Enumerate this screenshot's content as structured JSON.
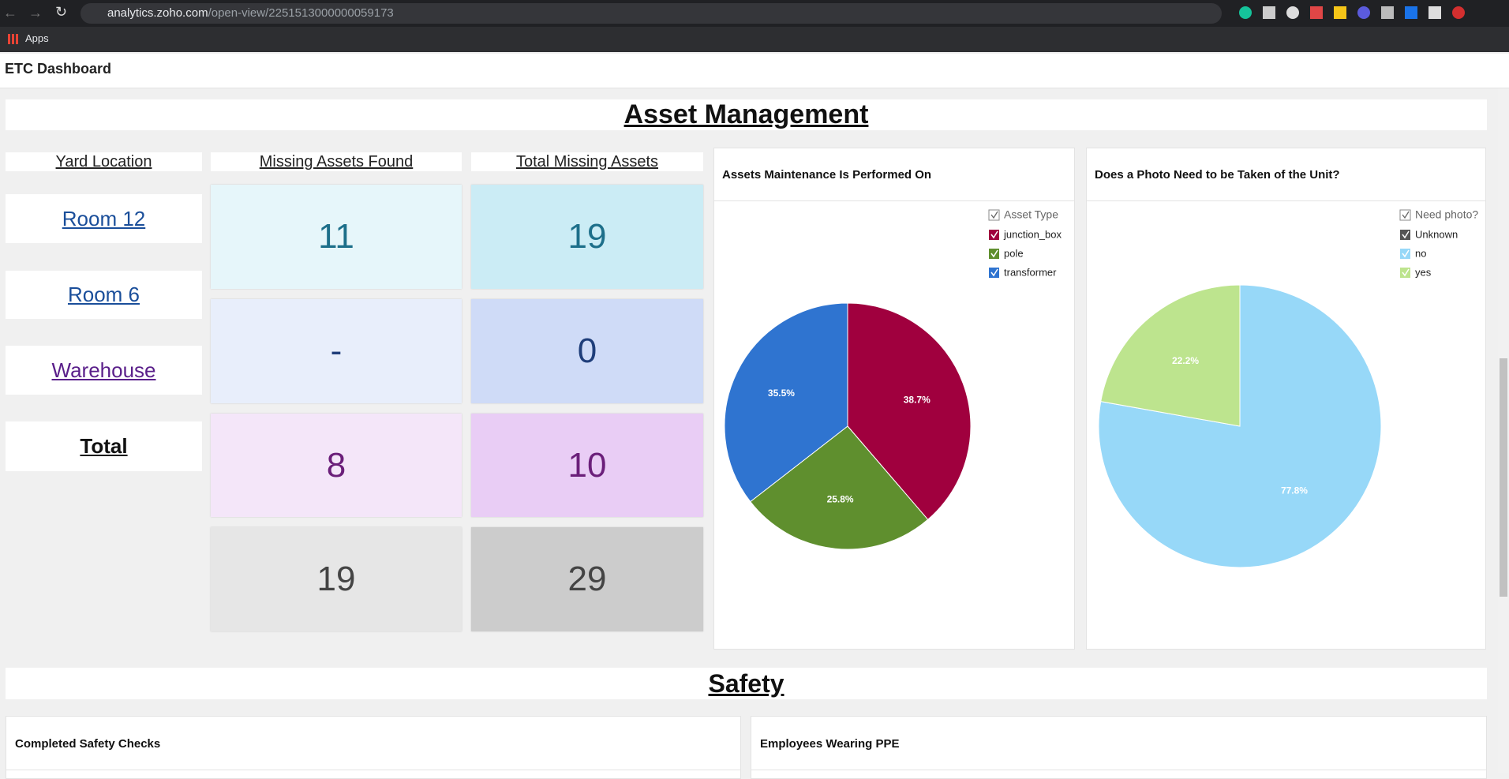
{
  "browser": {
    "url_host": "analytics.zoho.com",
    "url_path": "/open-view/2251513000000059173",
    "bookmark": "Apps"
  },
  "header": {
    "title": "ETC Dashboard"
  },
  "asset_management": {
    "title": "Asset Management",
    "table": {
      "headers": [
        "Yard Location",
        "Missing Assets Found",
        "Total Missing Assets"
      ],
      "rows": [
        [
          "Room 12",
          11,
          19
        ],
        [
          "Room 6",
          "-",
          0
        ],
        [
          "Warehouse",
          8,
          10
        ],
        [
          "Total",
          19,
          29
        ]
      ]
    }
  },
  "chart_data": [
    {
      "type": "pie",
      "title": "Assets Maintenance Is Performed On",
      "legend_title": "Asset Type",
      "categories": [
        "junction_box",
        "pole",
        "transformer"
      ],
      "values": [
        38.7,
        25.8,
        35.5
      ],
      "value_labels": [
        "38.7%",
        "25.8%",
        "35.5%"
      ],
      "colors": [
        "#a0003e",
        "#5f8f2e",
        "#2f74d0"
      ],
      "legend": "top-right"
    },
    {
      "type": "pie",
      "title": "Does a Photo Need to be Taken of the Unit?",
      "legend_title": "Need photo?",
      "categories": [
        "Unknown",
        "no",
        "yes"
      ],
      "values": [
        0,
        77.8,
        22.2
      ],
      "value_labels": [
        null,
        "77.8%",
        "22.2%"
      ],
      "colors": [
        "#555555",
        "#97d8f8",
        "#bde48e"
      ],
      "legend": "top-right"
    }
  ],
  "safety": {
    "title": "Safety",
    "panels": [
      "Completed Safety Checks",
      "Employees Wearing PPE"
    ]
  }
}
